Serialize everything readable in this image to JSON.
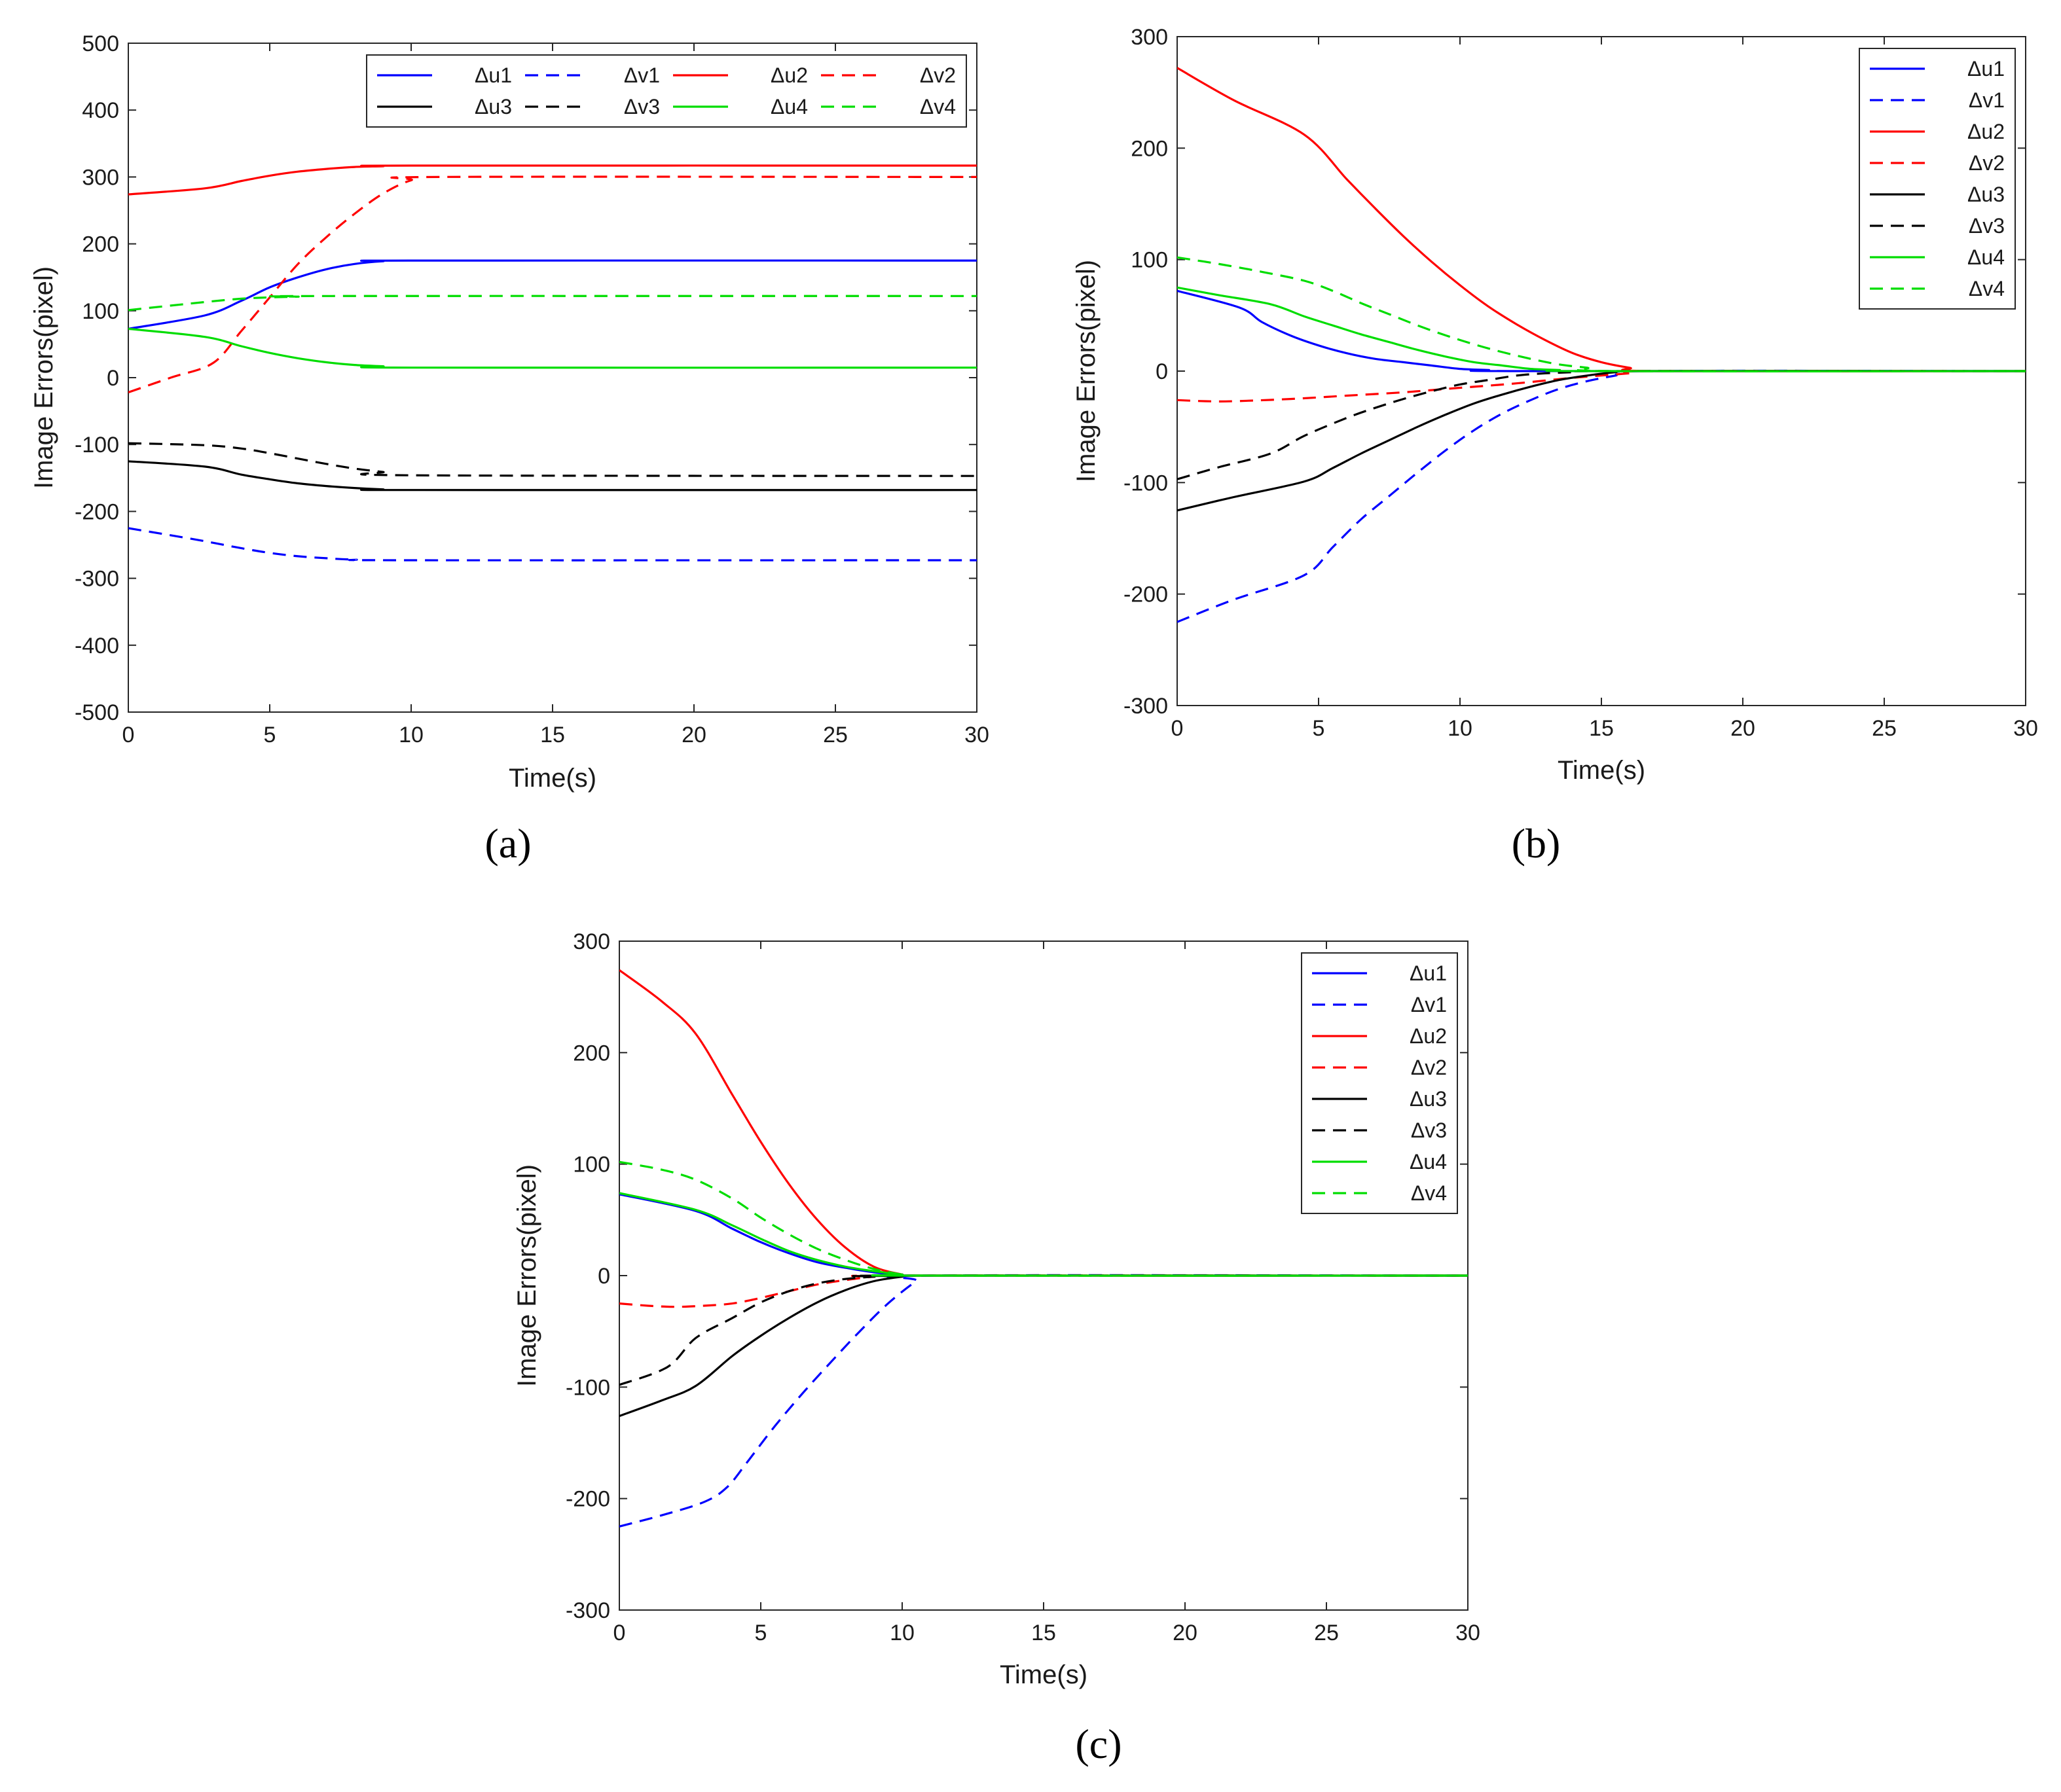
{
  "figure": {
    "panel_labels": [
      "(a)",
      "(b)",
      "(c)"
    ]
  },
  "colors": {
    "blue": "#0000ff",
    "red": "#ff0000",
    "black": "#000000",
    "green": "#00dd00"
  },
  "chart_data": [
    {
      "type": "line",
      "panel": "(a)",
      "xlabel": "Time(s)",
      "ylabel": "Image Errors(pixel)",
      "xlim": [
        0,
        30
      ],
      "ylim": [
        -500,
        500
      ],
      "xticks": [
        0,
        5,
        10,
        15,
        20,
        25,
        30
      ],
      "yticks": [
        -500,
        -400,
        -300,
        -200,
        -100,
        0,
        100,
        200,
        300,
        400,
        500
      ],
      "legend": {
        "placement": "top-right",
        "columns": 4
      },
      "series": [
        {
          "name": "Δu1",
          "color": "blue",
          "dashed": false,
          "x": [
            0,
            2.7,
            4,
            5,
            6,
            7,
            8,
            9,
            10,
            30
          ],
          "y": [
            73,
            93,
            115,
            135,
            150,
            162,
            170,
            174,
            175,
            175
          ]
        },
        {
          "name": "Δv1",
          "color": "blue",
          "dashed": true,
          "x": [
            0,
            2.5,
            4,
            5,
            6,
            7,
            8,
            10,
            30
          ],
          "y": [
            -225,
            -243,
            -255,
            -262,
            -267,
            -270,
            -272,
            -273,
            -273
          ]
        },
        {
          "name": "Δu2",
          "color": "red",
          "dashed": false,
          "x": [
            0,
            2.7,
            4,
            5,
            6,
            7,
            8,
            9,
            10,
            30
          ],
          "y": [
            274,
            283,
            294,
            302,
            308,
            312,
            315,
            316,
            317,
            317
          ]
        },
        {
          "name": "Δv2",
          "color": "red",
          "dashed": true,
          "x": [
            0,
            1.5,
            3,
            4,
            5,
            6,
            7,
            8,
            9,
            10,
            11,
            30
          ],
          "y": [
            -22,
            0,
            22,
            70,
            120,
            170,
            210,
            245,
            275,
            295,
            300,
            300
          ]
        },
        {
          "name": "Δu3",
          "color": "black",
          "dashed": false,
          "x": [
            0,
            2.7,
            4,
            5,
            6,
            7,
            8,
            9,
            10,
            30
          ],
          "y": [
            -125,
            -133,
            -145,
            -152,
            -158,
            -162,
            -165,
            -167,
            -168,
            -168
          ]
        },
        {
          "name": "Δv3",
          "color": "black",
          "dashed": true,
          "x": [
            0,
            2.7,
            4,
            5,
            6,
            7,
            8,
            9,
            10,
            30
          ],
          "y": [
            -98,
            -101,
            -106,
            -113,
            -121,
            -129,
            -136,
            -141,
            -146,
            -147
          ]
        },
        {
          "name": "Δu4",
          "color": "green",
          "dashed": false,
          "x": [
            0,
            2.7,
            4,
            5,
            6,
            7,
            8,
            9,
            10,
            30
          ],
          "y": [
            73,
            61,
            47,
            37,
            29,
            23,
            19,
            17,
            15,
            15
          ]
        },
        {
          "name": "Δv4",
          "color": "green",
          "dashed": true,
          "x": [
            0,
            2.7,
            4,
            5,
            6,
            7,
            30
          ],
          "y": [
            101,
            113,
            118,
            120,
            121,
            122,
            122
          ]
        }
      ]
    },
    {
      "type": "line",
      "panel": "(b)",
      "xlabel": "Time(s)",
      "ylabel": "Image Errors(pixel)",
      "xlim": [
        0,
        30
      ],
      "ylim": [
        -300,
        300
      ],
      "xticks": [
        0,
        5,
        10,
        15,
        20,
        25,
        30
      ],
      "yticks": [
        -300,
        -200,
        -100,
        0,
        100,
        200,
        300
      ],
      "legend": {
        "placement": "top-right",
        "columns": 1
      },
      "series": [
        {
          "name": "Δu1",
          "color": "blue",
          "dashed": false,
          "x": [
            0,
            2.2,
            3,
            4,
            5,
            6,
            7,
            8,
            9,
            10,
            11,
            12,
            30
          ],
          "y": [
            72,
            57,
            44,
            32,
            23,
            16,
            11,
            8,
            5,
            2,
            1,
            0,
            0
          ]
        },
        {
          "name": "Δv1",
          "color": "blue",
          "dashed": true,
          "x": [
            0,
            2,
            4.5,
            5.5,
            6.5,
            7.5,
            8.5,
            9.5,
            10.5,
            11.5,
            12.5,
            13.5,
            14.5,
            15.5,
            16.5,
            30
          ],
          "y": [
            -225,
            -205,
            -183,
            -158,
            -133,
            -112,
            -91,
            -71,
            -53,
            -38,
            -26,
            -16,
            -9,
            -4,
            0,
            0
          ]
        },
        {
          "name": "Δu2",
          "color": "red",
          "dashed": false,
          "x": [
            0,
            2,
            4.5,
            6,
            7,
            8,
            9,
            10,
            11,
            12,
            13,
            14,
            15,
            16,
            17,
            30
          ],
          "y": [
            272,
            243,
            212,
            172,
            146,
            121,
            98,
            77,
            58,
            42,
            28,
            16,
            8,
            3,
            0,
            0
          ]
        },
        {
          "name": "Δv2",
          "color": "red",
          "dashed": true,
          "x": [
            0,
            1,
            2,
            4,
            6,
            8,
            10,
            12,
            14,
            16,
            17,
            30
          ],
          "y": [
            -26,
            -27,
            -27,
            -25,
            -22,
            -19,
            -15,
            -11,
            -6,
            -2,
            0,
            0
          ]
        },
        {
          "name": "Δu3",
          "color": "black",
          "dashed": false,
          "x": [
            0,
            2,
            4.5,
            5.5,
            6.5,
            7.5,
            8.5,
            9.5,
            10.5,
            11.5,
            12.5,
            13.5,
            14.5,
            15.5,
            16.5,
            30
          ],
          "y": [
            -125,
            -113,
            -99,
            -87,
            -74,
            -62,
            -50,
            -39,
            -29,
            -21,
            -14,
            -8,
            -4,
            -1,
            0,
            0
          ]
        },
        {
          "name": "Δv3",
          "color": "black",
          "dashed": true,
          "x": [
            0,
            1.5,
            3.3,
            4.5,
            6,
            7,
            8,
            9,
            10,
            11,
            12,
            13,
            14,
            15,
            30
          ],
          "y": [
            -97,
            -86,
            -74,
            -58,
            -42,
            -33,
            -25,
            -18,
            -12,
            -8,
            -4,
            -2,
            -1,
            0,
            0
          ]
        },
        {
          "name": "Δu4",
          "color": "green",
          "dashed": false,
          "x": [
            0,
            1.5,
            3.3,
            4.5,
            5.5,
            6.5,
            7.5,
            8.5,
            9.5,
            10.5,
            11.5,
            12.5,
            13.5,
            14.5,
            30
          ],
          "y": [
            75,
            68,
            60,
            49,
            41,
            33,
            26,
            19,
            13,
            8,
            5,
            2,
            1,
            0,
            0
          ]
        },
        {
          "name": "Δv4",
          "color": "green",
          "dashed": true,
          "x": [
            0,
            1.5,
            3,
            4.5,
            5.5,
            6.5,
            7.5,
            8.5,
            9.5,
            10.5,
            11.5,
            12.5,
            13.5,
            14.5,
            15.5,
            30
          ],
          "y": [
            102,
            96,
            89,
            81,
            72,
            61,
            51,
            41,
            32,
            24,
            17,
            11,
            6,
            3,
            0,
            0
          ]
        }
      ]
    },
    {
      "type": "line",
      "panel": "(c)",
      "xlabel": "Time(s)",
      "ylabel": "Image Errors(pixel)",
      "xlim": [
        0,
        30
      ],
      "ylim": [
        -300,
        300
      ],
      "xticks": [
        0,
        5,
        10,
        15,
        20,
        25,
        30
      ],
      "yticks": [
        -300,
        -200,
        -100,
        0,
        100,
        200,
        300
      ],
      "legend": {
        "placement": "top-right",
        "columns": 1
      },
      "series": [
        {
          "name": "Δu1",
          "color": "blue",
          "dashed": false,
          "x": [
            0,
            2.7,
            4,
            5,
            6,
            7,
            8,
            9,
            10,
            10.5,
            30
          ],
          "y": [
            73,
            58,
            42,
            30,
            20,
            12,
            7,
            3,
            1,
            0,
            0
          ]
        },
        {
          "name": "Δv1",
          "color": "blue",
          "dashed": true,
          "x": [
            0,
            1.5,
            3,
            3.8,
            4.5,
            5.5,
            6.5,
            7.5,
            8.5,
            9.5,
            10.5,
            11,
            30
          ],
          "y": [
            -225,
            -215,
            -203,
            -190,
            -168,
            -135,
            -105,
            -77,
            -50,
            -25,
            -5,
            0,
            0
          ]
        },
        {
          "name": "Δu2",
          "color": "red",
          "dashed": false,
          "x": [
            0,
            1.5,
            2.7,
            4,
            5,
            6,
            7,
            8,
            9,
            10,
            10.5,
            30
          ],
          "y": [
            274,
            246,
            217,
            162,
            120,
            82,
            50,
            25,
            8,
            1,
            0,
            0
          ]
        },
        {
          "name": "Δv2",
          "color": "red",
          "dashed": true,
          "x": [
            0,
            1,
            2,
            3,
            4,
            5,
            6,
            7,
            8,
            9,
            10,
            30
          ],
          "y": [
            -25,
            -27,
            -28,
            -27,
            -25,
            -20,
            -14,
            -8,
            -4,
            -1,
            0,
            0
          ]
        },
        {
          "name": "Δu3",
          "color": "black",
          "dashed": false,
          "x": [
            0,
            1.5,
            2.7,
            4,
            5,
            6,
            7,
            8,
            9,
            10,
            10.5,
            30
          ],
          "y": [
            -126,
            -112,
            -99,
            -72,
            -54,
            -38,
            -24,
            -13,
            -5,
            -1,
            0,
            0
          ]
        },
        {
          "name": "Δv3",
          "color": "black",
          "dashed": true,
          "x": [
            0,
            1.7,
            2.7,
            4,
            5,
            6,
            7,
            8,
            9,
            10,
            30
          ],
          "y": [
            -98,
            -82,
            -56,
            -38,
            -24,
            -14,
            -7,
            -3,
            -1,
            0,
            0
          ]
        },
        {
          "name": "Δu4",
          "color": "green",
          "dashed": false,
          "x": [
            0,
            2.7,
            4,
            5,
            6,
            7,
            8,
            9,
            10,
            10.5,
            30
          ],
          "y": [
            74,
            59,
            45,
            33,
            22,
            14,
            8,
            4,
            1,
            0,
            0
          ]
        },
        {
          "name": "Δv4",
          "color": "green",
          "dashed": true,
          "x": [
            0,
            1.5,
            2.7,
            4,
            5,
            6,
            7,
            8,
            9,
            10,
            10.5,
            30
          ],
          "y": [
            102,
            95,
            86,
            69,
            52,
            37,
            24,
            14,
            6,
            1,
            0,
            0
          ]
        }
      ]
    }
  ]
}
